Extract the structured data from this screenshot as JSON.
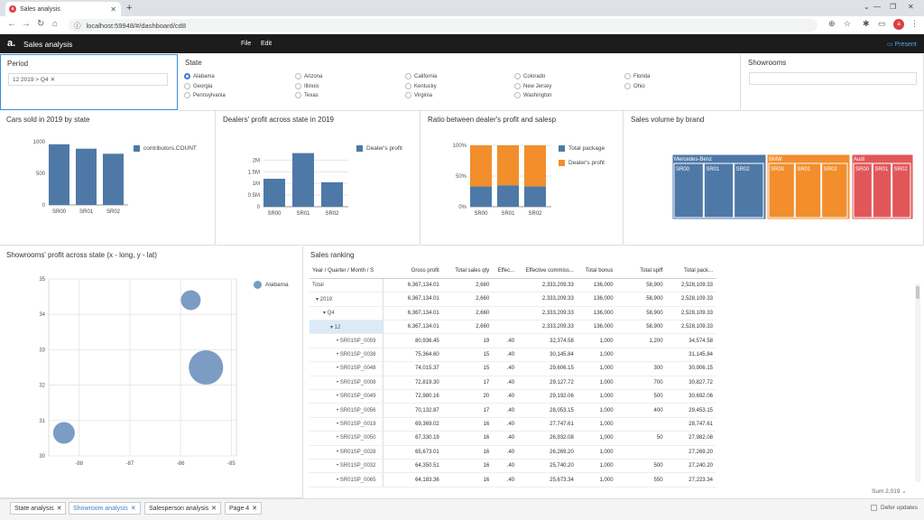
{
  "browser": {
    "tab_title": "Sales analysis",
    "url": "localhost:59948/#/dashboard/cd8"
  },
  "app": {
    "title": "Sales analysis",
    "menu": [
      "File",
      "Edit"
    ],
    "present_label": "Present"
  },
  "period": {
    "title": "Period",
    "chip": "12  2019 > Q4"
  },
  "state": {
    "title": "State",
    "selected": "Alabama",
    "options": [
      "Alabama",
      "Arizona",
      "California",
      "Colorado",
      "Florida",
      "Georgia",
      "Illinois",
      "Kentucky",
      "New Jersey",
      "Ohio",
      "Pennsylvania",
      "Texas",
      "Virginia",
      "Washington"
    ]
  },
  "showrooms": {
    "title": "Showrooms"
  },
  "charts": {
    "cars_sold": {
      "title": "Cars sold in 2019 by state",
      "legend": "contributors.COUNT",
      "color": "#4e79a7"
    },
    "dealers_profit": {
      "title": "Dealers' profit across state in 2019",
      "legend": "Dealer's profit",
      "color": "#4e79a7"
    },
    "ratio": {
      "title": "Ratio between dealer's profit and salesp",
      "legend": [
        "Total package",
        "Dealer's profit"
      ],
      "colors": [
        "#4e79a7",
        "#f28e2b"
      ]
    },
    "sales_volume": {
      "title": "Sales volume by brand"
    },
    "showrooms_profit": {
      "title": "Showrooms' profit across state (x - long, y - lat)",
      "legend": "Alabama"
    }
  },
  "chart_data": [
    {
      "type": "bar",
      "categories": [
        "SR00",
        "SR01",
        "SR02"
      ],
      "series": [
        {
          "name": "contributors.COUNT",
          "values": [
            960,
            890,
            810
          ]
        }
      ],
      "yticks": [
        "0",
        "500",
        "1000"
      ],
      "ylim": [
        0,
        1000
      ]
    },
    {
      "type": "bar",
      "categories": [
        "SR00",
        "SR01",
        "SR02"
      ],
      "series": [
        {
          "name": "Dealer's profit",
          "values": [
            1.2,
            2.3,
            1.05
          ]
        }
      ],
      "yticks": [
        "0",
        "0.5M",
        "1M",
        "1.5M",
        "2M"
      ],
      "ylim": [
        0,
        2.4
      ]
    },
    {
      "type": "bar",
      "stacked": true,
      "categories": [
        "SR00",
        "SR01",
        "SR02"
      ],
      "series": [
        {
          "name": "Total package",
          "values": [
            33,
            35,
            33
          ]
        },
        {
          "name": "Dealer's profit",
          "values": [
            67,
            65,
            67
          ]
        }
      ],
      "yticks": [
        "0%",
        "50%",
        "100%"
      ],
      "ylim": [
        0,
        100
      ]
    },
    {
      "type": "treemap",
      "groups": [
        {
          "name": "Mercedes-Benz",
          "color": "#4e79a7",
          "children": [
            "SR00",
            "SR01",
            "SR02"
          ]
        },
        {
          "name": "BMW",
          "color": "#f28e2b",
          "children": [
            "SR00",
            "SR01",
            "SR02"
          ]
        },
        {
          "name": "Audi",
          "color": "#e15759",
          "children": [
            "SR00",
            "SR01",
            "SR02"
          ]
        }
      ]
    },
    {
      "type": "scatter",
      "series": [
        {
          "name": "Alabama",
          "points": [
            {
              "x": -85.8,
              "y": 34.4,
              "size": 1
            },
            {
              "x": -85.5,
              "y": 32.5,
              "size": 3
            },
            {
              "x": -88.3,
              "y": 30.65,
              "size": 1.2
            }
          ]
        }
      ],
      "xticks": [
        "-88",
        "-87",
        "-86",
        "-85"
      ],
      "yticks": [
        "30",
        "31",
        "32",
        "33",
        "34",
        "35"
      ],
      "xlim": [
        -88.6,
        -84.9
      ],
      "ylim": [
        30,
        35
      ]
    }
  ],
  "ranking": {
    "title": "Sales ranking",
    "columns": [
      "Year / Quarter / Month / S",
      "Gross profit",
      "Total sales qty",
      "Effec...",
      "Effective commiss...",
      "Total bonus",
      "Total spiff",
      "Total pack..."
    ],
    "rows": [
      [
        "Total",
        "6,367,134.01",
        "2,660",
        "",
        "2,333,209.33",
        "136,000",
        "58,900",
        "2,528,109.33"
      ],
      [
        "▾ 2019",
        "6,367,134.01",
        "2,660",
        "",
        "2,333,209.33",
        "136,000",
        "58,900",
        "2,528,109.33"
      ],
      [
        "▾ Q4",
        "6,367,134.01",
        "2,660",
        "",
        "2,333,209.33",
        "136,000",
        "58,900",
        "2,528,109.33"
      ],
      [
        "▾ 12",
        "6,367,134.01",
        "2,660",
        "",
        "2,333,209.33",
        "136,000",
        "58,900",
        "2,528,109.33"
      ],
      [
        "• SR01SP_0059",
        "80,936.45",
        "19",
        ".40",
        "32,374.58",
        "1,000",
        "1,200",
        "34,574.58"
      ],
      [
        "• SR01SP_0038",
        "75,364.60",
        "15",
        ".40",
        "30,145.84",
        "1,000",
        "",
        "31,145.84"
      ],
      [
        "• SR01SP_0048",
        "74,015.37",
        "15",
        ".40",
        "29,606.15",
        "1,000",
        "300",
        "30,906.15"
      ],
      [
        "• SR01SP_0008",
        "72,819.30",
        "17",
        ".40",
        "29,127.72",
        "1,000",
        "700",
        "30,827.72"
      ],
      [
        "• SR01SP_0049",
        "72,980.16",
        "20",
        ".40",
        "29,192.06",
        "1,000",
        "500",
        "30,692.06"
      ],
      [
        "• SR01SP_0056",
        "70,132.87",
        "17",
        ".40",
        "28,053.15",
        "1,000",
        "400",
        "29,453.15"
      ],
      [
        "• SR01SP_0019",
        "69,369.02",
        "16",
        ".40",
        "27,747.61",
        "1,000",
        "",
        "28,747.61"
      ],
      [
        "• SR01SP_0050",
        "67,330.19",
        "16",
        ".40",
        "26,932.08",
        "1,000",
        "50",
        "27,982.08"
      ],
      [
        "• SR01SP_0028",
        "65,673.01",
        "16",
        ".40",
        "26,269.20",
        "1,000",
        "",
        "27,269.20"
      ],
      [
        "• SR01SP_0032",
        "64,350.51",
        "16",
        ".40",
        "25,740.20",
        "1,000",
        "500",
        "27,240.20"
      ],
      [
        "• SR01SP_0065",
        "64,183.36",
        "16",
        ".40",
        "25,673.34",
        "1,000",
        "550",
        "27,223.34"
      ]
    ],
    "sum_label": "Sum 2,019"
  },
  "sheets": [
    "State analysis",
    "Showroom analysis",
    "Salesperson analysis",
    "Page 4"
  ],
  "active_sheet": "Showroom analysis",
  "defer_label": "Defer updates"
}
